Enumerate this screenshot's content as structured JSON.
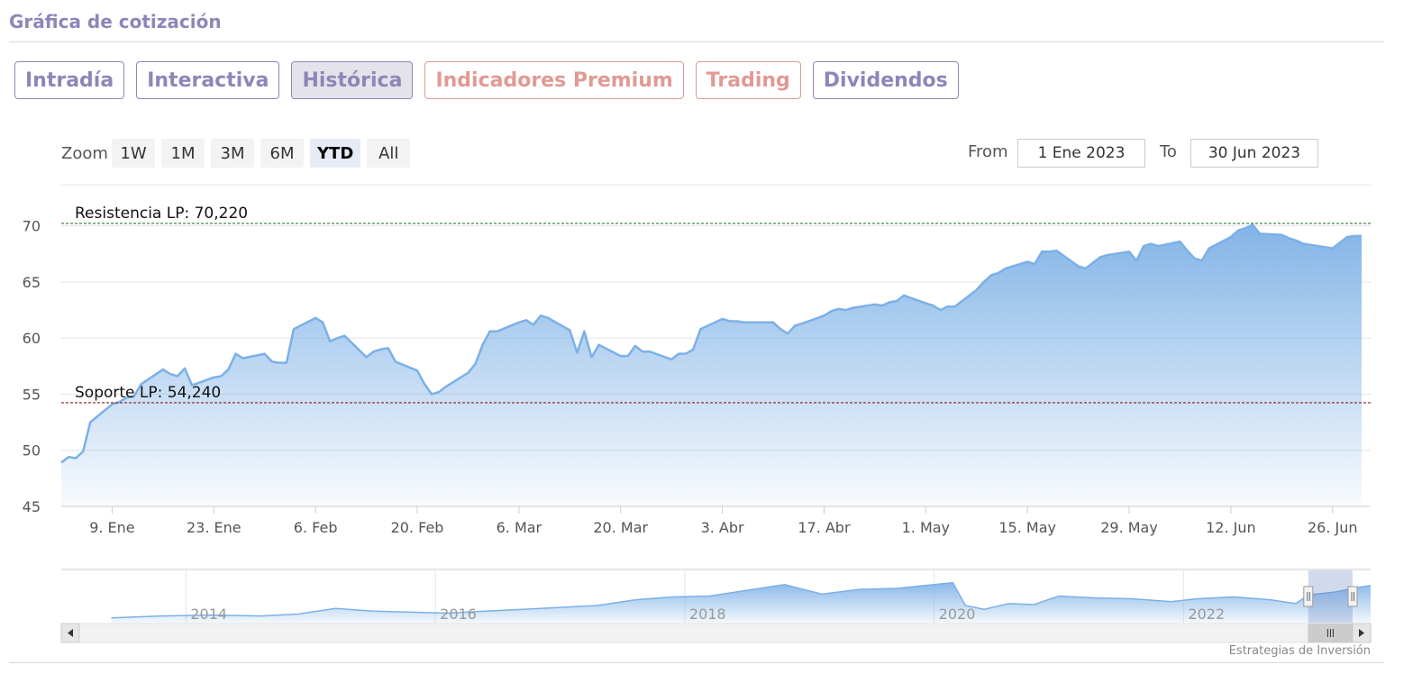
{
  "header": {
    "title": "Gráfica de cotización"
  },
  "tabs": [
    {
      "label": "Intradía",
      "state": "normal"
    },
    {
      "label": "Interactiva",
      "state": "normal"
    },
    {
      "label": "Histórica",
      "state": "active"
    },
    {
      "label": "Indicadores Premium",
      "state": "premium"
    },
    {
      "label": "Trading",
      "state": "premium"
    },
    {
      "label": "Dividendos",
      "state": "normal"
    }
  ],
  "zoom": {
    "label": "Zoom",
    "buttons": [
      "1W",
      "1M",
      "3M",
      "6M",
      "YTD",
      "All"
    ],
    "active": "YTD"
  },
  "range": {
    "from_label": "From",
    "from_value": "1 Ene 2023",
    "to_label": "To",
    "to_value": "30 Jun 2023"
  },
  "credit": "Estrategias de Inversión",
  "colors": {
    "accent": "#8e86b8",
    "premium": "#e09a94",
    "series_line": "#7cb0e6",
    "resistance": "#2e7d32",
    "support": "#8b1a1a"
  },
  "chart_data": {
    "type": "area",
    "title": "",
    "xlabel": "",
    "ylabel": "",
    "ylim": [
      45,
      71.5
    ],
    "yticks": [
      45,
      50,
      55,
      60,
      65,
      70
    ],
    "xlim": [
      "2023-01-02",
      "2023-06-30"
    ],
    "xticks": [
      {
        "date": "2023-01-09",
        "label": "9. Ene"
      },
      {
        "date": "2023-01-23",
        "label": "23. Ene"
      },
      {
        "date": "2023-02-06",
        "label": "6. Feb"
      },
      {
        "date": "2023-02-20",
        "label": "20. Feb"
      },
      {
        "date": "2023-03-06",
        "label": "6. Mar"
      },
      {
        "date": "2023-03-20",
        "label": "20. Mar"
      },
      {
        "date": "2023-04-03",
        "label": "3. Abr"
      },
      {
        "date": "2023-04-17",
        "label": "17. Abr"
      },
      {
        "date": "2023-05-01",
        "label": "1. May"
      },
      {
        "date": "2023-05-15",
        "label": "15. May"
      },
      {
        "date": "2023-05-29",
        "label": "29. May"
      },
      {
        "date": "2023-06-12",
        "label": "12. Jun"
      },
      {
        "date": "2023-06-26",
        "label": "26. Jun"
      }
    ],
    "plot_lines": [
      {
        "label": "Resistencia LP: 70,220",
        "value": 70.22,
        "color": "#2e7d32"
      },
      {
        "label": "Soporte LP: 54,240",
        "value": 54.24,
        "color": "#8b1a1a"
      }
    ],
    "series": [
      {
        "points": [
          [
            "2023-01-02",
            48.9
          ],
          [
            "2023-01-03",
            49.4
          ],
          [
            "2023-01-04",
            49.3
          ],
          [
            "2023-01-05",
            49.9
          ],
          [
            "2023-01-06",
            52.5
          ],
          [
            "2023-01-09",
            54.1
          ],
          [
            "2023-01-10",
            54.3
          ],
          [
            "2023-01-11",
            54.7
          ],
          [
            "2023-01-12",
            54.8
          ],
          [
            "2023-01-13",
            55.9
          ],
          [
            "2023-01-16",
            57.2
          ],
          [
            "2023-01-17",
            56.8
          ],
          [
            "2023-01-18",
            56.6
          ],
          [
            "2023-01-19",
            57.3
          ],
          [
            "2023-01-20",
            55.8
          ],
          [
            "2023-01-23",
            56.5
          ],
          [
            "2023-01-24",
            56.6
          ],
          [
            "2023-01-25",
            57.2
          ],
          [
            "2023-01-26",
            58.6
          ],
          [
            "2023-01-27",
            58.2
          ],
          [
            "2023-01-30",
            58.6
          ],
          [
            "2023-01-31",
            57.9
          ],
          [
            "2023-02-01",
            57.8
          ],
          [
            "2023-02-02",
            57.8
          ],
          [
            "2023-02-03",
            60.8
          ],
          [
            "2023-02-06",
            61.8
          ],
          [
            "2023-02-07",
            61.4
          ],
          [
            "2023-02-08",
            59.7
          ],
          [
            "2023-02-09",
            60.0
          ],
          [
            "2023-02-10",
            60.2
          ],
          [
            "2023-02-13",
            58.3
          ],
          [
            "2023-02-14",
            58.8
          ],
          [
            "2023-02-15",
            59.0
          ],
          [
            "2023-02-16",
            59.1
          ],
          [
            "2023-02-17",
            57.9
          ],
          [
            "2023-02-20",
            57.1
          ],
          [
            "2023-02-21",
            55.9
          ],
          [
            "2023-02-22",
            55.0
          ],
          [
            "2023-02-23",
            55.2
          ],
          [
            "2023-02-24",
            55.7
          ],
          [
            "2023-02-27",
            56.9
          ],
          [
            "2023-02-28",
            57.7
          ],
          [
            "2023-03-01",
            59.4
          ],
          [
            "2023-03-02",
            60.6
          ],
          [
            "2023-03-03",
            60.6
          ],
          [
            "2023-03-06",
            61.4
          ],
          [
            "2023-03-07",
            61.6
          ],
          [
            "2023-03-08",
            61.2
          ],
          [
            "2023-03-09",
            62.0
          ],
          [
            "2023-03-10",
            61.8
          ],
          [
            "2023-03-13",
            60.7
          ],
          [
            "2023-03-14",
            58.7
          ],
          [
            "2023-03-15",
            60.6
          ],
          [
            "2023-03-16",
            58.3
          ],
          [
            "2023-03-17",
            59.4
          ],
          [
            "2023-03-20",
            58.4
          ],
          [
            "2023-03-21",
            58.4
          ],
          [
            "2023-03-22",
            59.3
          ],
          [
            "2023-03-23",
            58.8
          ],
          [
            "2023-03-24",
            58.8
          ],
          [
            "2023-03-27",
            58.1
          ],
          [
            "2023-03-28",
            58.6
          ],
          [
            "2023-03-29",
            58.6
          ],
          [
            "2023-03-30",
            59.0
          ],
          [
            "2023-03-31",
            60.8
          ],
          [
            "2023-04-03",
            61.7
          ],
          [
            "2023-04-04",
            61.5
          ],
          [
            "2023-04-05",
            61.5
          ],
          [
            "2023-04-06",
            61.4
          ],
          [
            "2023-04-10",
            61.4
          ],
          [
            "2023-04-11",
            60.8
          ],
          [
            "2023-04-12",
            60.4
          ],
          [
            "2023-04-13",
            61.1
          ],
          [
            "2023-04-14",
            61.3
          ],
          [
            "2023-04-17",
            62.0
          ],
          [
            "2023-04-18",
            62.4
          ],
          [
            "2023-04-19",
            62.6
          ],
          [
            "2023-04-20",
            62.5
          ],
          [
            "2023-04-21",
            62.7
          ],
          [
            "2023-04-24",
            63.0
          ],
          [
            "2023-04-25",
            62.9
          ],
          [
            "2023-04-26",
            63.2
          ],
          [
            "2023-04-27",
            63.3
          ],
          [
            "2023-04-28",
            63.8
          ],
          [
            "2023-05-01",
            63.1
          ],
          [
            "2023-05-02",
            62.9
          ],
          [
            "2023-05-03",
            62.5
          ],
          [
            "2023-05-04",
            62.8
          ],
          [
            "2023-05-05",
            62.8
          ],
          [
            "2023-05-08",
            64.3
          ],
          [
            "2023-05-09",
            65.0
          ],
          [
            "2023-05-10",
            65.6
          ],
          [
            "2023-05-11",
            65.8
          ],
          [
            "2023-05-12",
            66.2
          ],
          [
            "2023-05-15",
            66.8
          ],
          [
            "2023-05-16",
            66.6
          ],
          [
            "2023-05-17",
            67.7
          ],
          [
            "2023-05-18",
            67.7
          ],
          [
            "2023-05-19",
            67.8
          ],
          [
            "2023-05-22",
            66.4
          ],
          [
            "2023-05-23",
            66.2
          ],
          [
            "2023-05-24",
            66.7
          ],
          [
            "2023-05-25",
            67.2
          ],
          [
            "2023-05-26",
            67.4
          ],
          [
            "2023-05-29",
            67.7
          ],
          [
            "2023-05-30",
            66.9
          ],
          [
            "2023-05-31",
            68.2
          ],
          [
            "2023-06-01",
            68.4
          ],
          [
            "2023-06-02",
            68.2
          ],
          [
            "2023-06-05",
            68.6
          ],
          [
            "2023-06-06",
            67.8
          ],
          [
            "2023-06-07",
            67.1
          ],
          [
            "2023-06-08",
            66.9
          ],
          [
            "2023-06-09",
            68.0
          ],
          [
            "2023-06-12",
            69.0
          ],
          [
            "2023-06-13",
            69.6
          ],
          [
            "2023-06-14",
            69.8
          ],
          [
            "2023-06-15",
            70.1
          ],
          [
            "2023-06-16",
            69.3
          ],
          [
            "2023-06-19",
            69.2
          ],
          [
            "2023-06-20",
            68.9
          ],
          [
            "2023-06-21",
            68.7
          ],
          [
            "2023-06-22",
            68.4
          ],
          [
            "2023-06-23",
            68.3
          ],
          [
            "2023-06-26",
            68.0
          ],
          [
            "2023-06-27",
            68.5
          ],
          [
            "2023-06-28",
            69.0
          ],
          [
            "2023-06-29",
            69.1
          ],
          [
            "2023-06-30",
            69.1
          ]
        ]
      }
    ],
    "navigator": {
      "xlim": [
        2013.0,
        2023.5
      ],
      "labels": [
        "2014",
        "2016",
        "2018",
        "2020",
        "2022"
      ],
      "label_years": [
        2014,
        2016,
        2018,
        2020,
        2022
      ],
      "ylim": [
        20,
        75
      ],
      "selected_range": [
        2023.0,
        2023.5
      ],
      "series": [
        [
          2013.4,
          25
        ],
        [
          2013.8,
          27
        ],
        [
          2014.2,
          28
        ],
        [
          2014.6,
          27
        ],
        [
          2014.9,
          29
        ],
        [
          2015.2,
          35
        ],
        [
          2015.5,
          32
        ],
        [
          2015.8,
          31
        ],
        [
          2016.1,
          30
        ],
        [
          2016.4,
          32
        ],
        [
          2016.7,
          34
        ],
        [
          2017.0,
          36
        ],
        [
          2017.3,
          38
        ],
        [
          2017.6,
          44
        ],
        [
          2017.9,
          47
        ],
        [
          2018.2,
          48
        ],
        [
          2018.5,
          54
        ],
        [
          2018.8,
          60
        ],
        [
          2019.1,
          50
        ],
        [
          2019.4,
          55
        ],
        [
          2019.7,
          56
        ],
        [
          2020.0,
          60
        ],
        [
          2020.15,
          62
        ],
        [
          2020.25,
          38
        ],
        [
          2020.4,
          34
        ],
        [
          2020.6,
          40
        ],
        [
          2020.8,
          39
        ],
        [
          2021.0,
          48
        ],
        [
          2021.3,
          46
        ],
        [
          2021.6,
          45
        ],
        [
          2021.9,
          42
        ],
        [
          2022.1,
          45
        ],
        [
          2022.4,
          47
        ],
        [
          2022.7,
          44
        ],
        [
          2022.9,
          40
        ],
        [
          2023.0,
          49
        ],
        [
          2023.2,
          52
        ],
        [
          2023.4,
          57
        ],
        [
          2023.5,
          59
        ]
      ]
    }
  }
}
